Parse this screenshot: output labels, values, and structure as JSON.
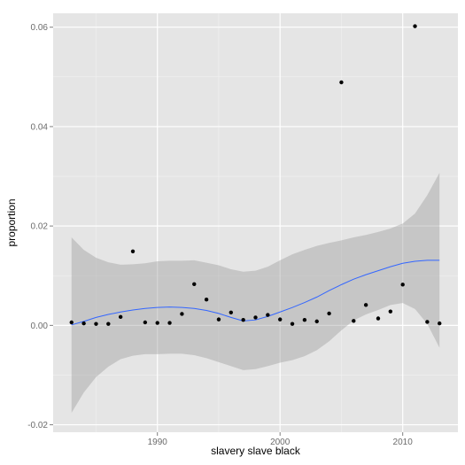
{
  "chart_data": {
    "type": "scatter",
    "xlabel": "slavery slave black",
    "ylabel": "proportion",
    "xlim": [
      1981.5,
      2014.5
    ],
    "ylim": [
      -0.0215,
      0.0628
    ],
    "x_ticks": [
      1990,
      2000,
      2010
    ],
    "x_tick_labels": [
      "1990",
      "2000",
      "2010"
    ],
    "y_ticks": [
      -0.02,
      0.0,
      0.02,
      0.04,
      0.06
    ],
    "y_tick_labels": [
      "-0.02",
      "0.00",
      "0.02",
      "0.04",
      "0.06"
    ],
    "grid": true,
    "points": [
      {
        "x": 1983,
        "y": 0.0006
      },
      {
        "x": 1984,
        "y": 0.0004
      },
      {
        "x": 1985,
        "y": 0.0003
      },
      {
        "x": 1986,
        "y": 0.0003
      },
      {
        "x": 1987,
        "y": 0.0017
      },
      {
        "x": 1988,
        "y": 0.0149
      },
      {
        "x": 1989,
        "y": 0.0006
      },
      {
        "x": 1990,
        "y": 0.0005
      },
      {
        "x": 1991,
        "y": 0.0005
      },
      {
        "x": 1992,
        "y": 0.0023
      },
      {
        "x": 1993,
        "y": 0.0083
      },
      {
        "x": 1994,
        "y": 0.0052
      },
      {
        "x": 1995,
        "y": 0.0012
      },
      {
        "x": 1996,
        "y": 0.0026
      },
      {
        "x": 1997,
        "y": 0.0011
      },
      {
        "x": 1998,
        "y": 0.0016
      },
      {
        "x": 1999,
        "y": 0.0021
      },
      {
        "x": 2000,
        "y": 0.0012
      },
      {
        "x": 2001,
        "y": 0.0003
      },
      {
        "x": 2002,
        "y": 0.0011
      },
      {
        "x": 2003,
        "y": 0.0008
      },
      {
        "x": 2004,
        "y": 0.0024
      },
      {
        "x": 2005,
        "y": 0.0489
      },
      {
        "x": 2006,
        "y": 0.0009
      },
      {
        "x": 2007,
        "y": 0.0041
      },
      {
        "x": 2008,
        "y": 0.0014
      },
      {
        "x": 2009,
        "y": 0.0028
      },
      {
        "x": 2010,
        "y": 0.0082
      },
      {
        "x": 2011,
        "y": 0.0602
      },
      {
        "x": 2012,
        "y": 0.0007
      },
      {
        "x": 2013,
        "y": 0.0004
      }
    ],
    "smooth": {
      "method": "loess",
      "color": "#3366FF",
      "band_color": "#999999",
      "x": [
        1983,
        1984,
        1985,
        1986,
        1987,
        1988,
        1989,
        1990,
        1991,
        1992,
        1993,
        1994,
        1995,
        1996,
        1997,
        1998,
        1999,
        2000,
        2001,
        2002,
        2003,
        2004,
        2005,
        2006,
        2007,
        2008,
        2009,
        2010,
        2011,
        2012,
        2013
      ],
      "fit": [
        0.0001,
        0.0008,
        0.0016,
        0.0022,
        0.0027,
        0.0031,
        0.0034,
        0.0036,
        0.0037,
        0.0036,
        0.0034,
        0.003,
        0.0024,
        0.0016,
        0.0009,
        0.0011,
        0.0018,
        0.0027,
        0.0036,
        0.0046,
        0.0057,
        0.007,
        0.0082,
        0.0093,
        0.0102,
        0.011,
        0.0118,
        0.0125,
        0.0129,
        0.0131,
        0.0131
      ],
      "upper": [
        0.0177,
        0.0152,
        0.0136,
        0.0127,
        0.0122,
        0.0123,
        0.0125,
        0.0129,
        0.013,
        0.013,
        0.0131,
        0.0126,
        0.0121,
        0.0113,
        0.0108,
        0.011,
        0.0118,
        0.0131,
        0.0143,
        0.0152,
        0.016,
        0.0166,
        0.0171,
        0.0177,
        0.0182,
        0.0188,
        0.0195,
        0.0205,
        0.0225,
        0.0262,
        0.0307
      ],
      "lower": [
        -0.0176,
        -0.0135,
        -0.0104,
        -0.0083,
        -0.0068,
        -0.0061,
        -0.0058,
        -0.0058,
        -0.0057,
        -0.0057,
        -0.006,
        -0.0066,
        -0.0074,
        -0.0082,
        -0.009,
        -0.0088,
        -0.0082,
        -0.0075,
        -0.007,
        -0.0062,
        -0.005,
        -0.0032,
        -0.001,
        0.001,
        0.0022,
        0.0031,
        0.0041,
        0.0045,
        0.0033,
        0.0003,
        -0.0045
      ]
    }
  }
}
